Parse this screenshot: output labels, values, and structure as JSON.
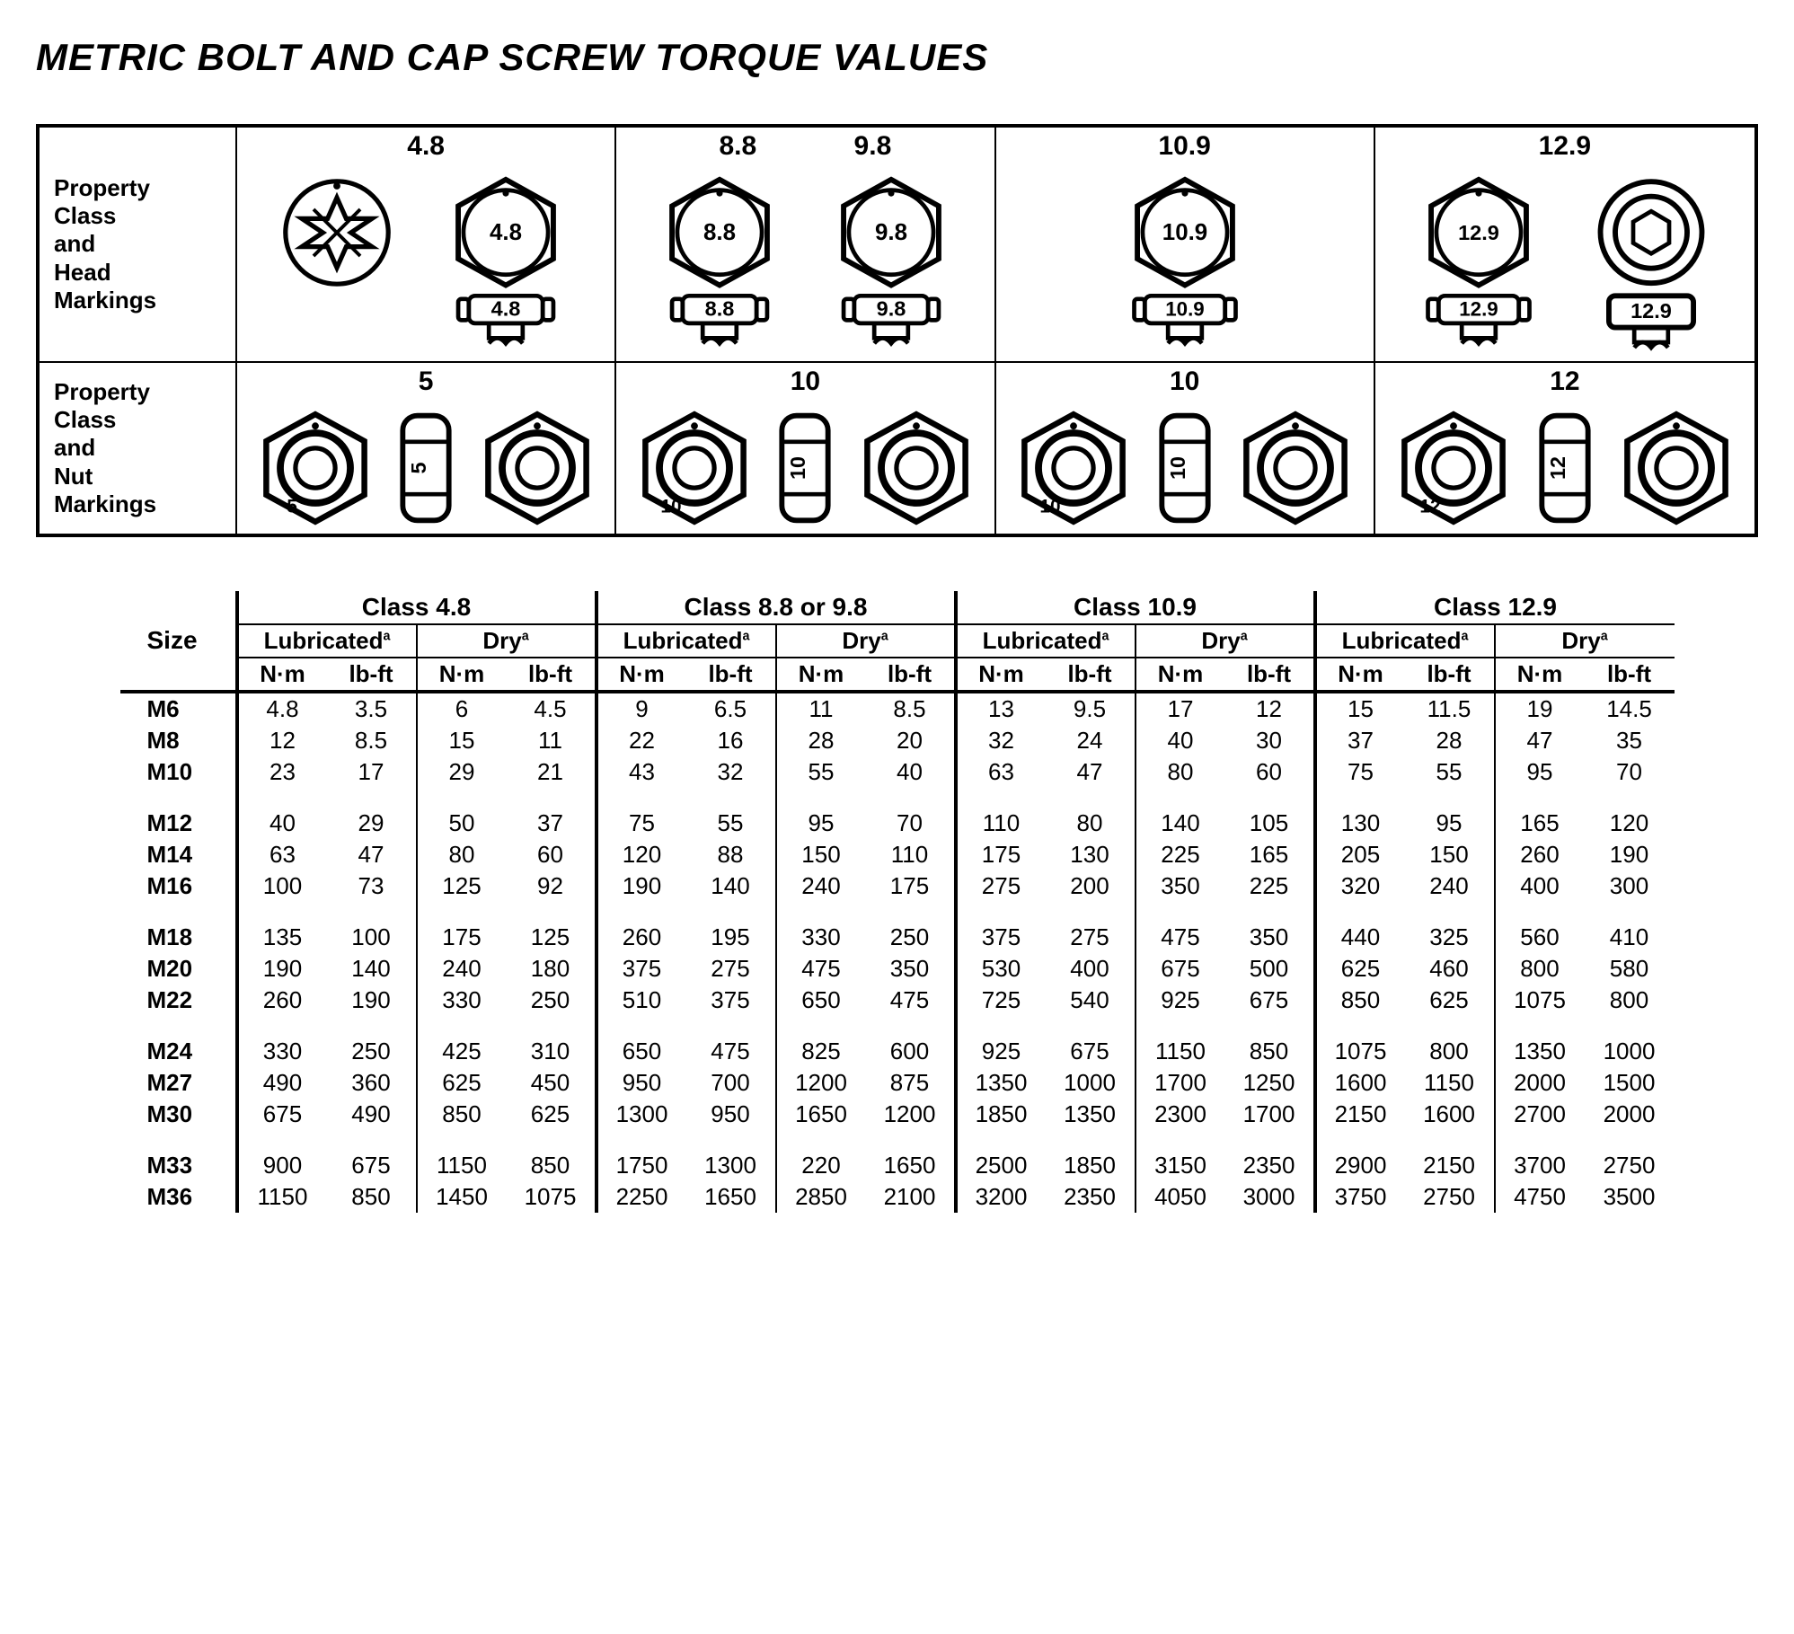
{
  "title": "METRIC BOLT AND CAP SCREW TORQUE VALUES",
  "colors": {
    "ink": "#000000",
    "paper": "#ffffff"
  },
  "fonts": {
    "title_pt": 42,
    "header_pt": 28,
    "body_pt": 26,
    "weight_bold": 700
  },
  "markings": {
    "head_row_label": "Property\nClass\nand\nHead\nMarkings",
    "nut_row_label": "Property\nClass\nand\nNut\nMarkings",
    "head_classes": [
      "4.8",
      "8.8             9.8",
      "10.9",
      "12.9"
    ],
    "nut_classes": [
      "5",
      "10",
      "10",
      "12"
    ],
    "head_glyph_labels": {
      "c0": [
        "4.8",
        "4.8"
      ],
      "c1": [
        "8.8",
        "8.8",
        "9.8",
        "9.8"
      ],
      "c2": [
        "10.9",
        "10.9"
      ],
      "c3": [
        "12.9",
        "12.9",
        "12.9"
      ]
    },
    "nut_glyph_labels": {
      "c0": [
        "5",
        "5"
      ],
      "c1": [
        "10",
        "10"
      ],
      "c2": [
        "10",
        "10"
      ],
      "c3": [
        "12",
        "12"
      ]
    }
  },
  "table": {
    "size_header": "Size",
    "class_headers": [
      "Class 4.8",
      "Class 8.8 or 9.8",
      "Class 10.9",
      "Class 12.9"
    ],
    "cond_headers": [
      "Lubricated",
      "Dry"
    ],
    "cond_footnote": "a",
    "unit_headers": [
      "N·m",
      "lb-ft"
    ],
    "groups": [
      {
        "sizes": [
          "M6",
          "M8",
          "M10"
        ],
        "rows": [
          [
            4.8,
            3.5,
            6,
            4.5,
            9,
            6.5,
            11,
            8.5,
            13,
            9.5,
            17,
            12,
            15,
            11.5,
            19,
            14.5
          ],
          [
            12,
            8.5,
            15,
            11,
            22,
            16,
            28,
            20,
            32,
            24,
            40,
            30,
            37,
            28,
            47,
            35
          ],
          [
            23,
            17,
            29,
            21,
            43,
            32,
            55,
            40,
            63,
            47,
            80,
            60,
            75,
            55,
            95,
            70
          ]
        ]
      },
      {
        "sizes": [
          "M12",
          "M14",
          "M16"
        ],
        "rows": [
          [
            40,
            29,
            50,
            37,
            75,
            55,
            95,
            70,
            110,
            80,
            140,
            105,
            130,
            95,
            165,
            120
          ],
          [
            63,
            47,
            80,
            60,
            120,
            88,
            150,
            110,
            175,
            130,
            225,
            165,
            205,
            150,
            260,
            190
          ],
          [
            100,
            73,
            125,
            92,
            190,
            140,
            240,
            175,
            275,
            200,
            350,
            225,
            320,
            240,
            400,
            300
          ]
        ]
      },
      {
        "sizes": [
          "M18",
          "M20",
          "M22"
        ],
        "rows": [
          [
            135,
            100,
            175,
            125,
            260,
            195,
            330,
            250,
            375,
            275,
            475,
            350,
            440,
            325,
            560,
            410
          ],
          [
            190,
            140,
            240,
            180,
            375,
            275,
            475,
            350,
            530,
            400,
            675,
            500,
            625,
            460,
            800,
            580
          ],
          [
            260,
            190,
            330,
            250,
            510,
            375,
            650,
            475,
            725,
            540,
            925,
            675,
            850,
            625,
            1075,
            800
          ]
        ]
      },
      {
        "sizes": [
          "M24",
          "M27",
          "M30"
        ],
        "rows": [
          [
            330,
            250,
            425,
            310,
            650,
            475,
            825,
            600,
            925,
            675,
            1150,
            850,
            1075,
            800,
            1350,
            1000
          ],
          [
            490,
            360,
            625,
            450,
            950,
            700,
            1200,
            875,
            1350,
            1000,
            1700,
            1250,
            1600,
            1150,
            2000,
            1500
          ],
          [
            675,
            490,
            850,
            625,
            1300,
            950,
            1650,
            1200,
            1850,
            1350,
            2300,
            1700,
            2150,
            1600,
            2700,
            2000
          ]
        ]
      },
      {
        "sizes": [
          "M33",
          "M36"
        ],
        "rows": [
          [
            900,
            675,
            1150,
            850,
            1750,
            1300,
            220,
            1650,
            2500,
            1850,
            3150,
            2350,
            2900,
            2150,
            3700,
            2750
          ],
          [
            1150,
            850,
            1450,
            1075,
            2250,
            1650,
            2850,
            2100,
            3200,
            2350,
            4050,
            3000,
            3750,
            2750,
            4750,
            3500
          ]
        ]
      }
    ]
  }
}
